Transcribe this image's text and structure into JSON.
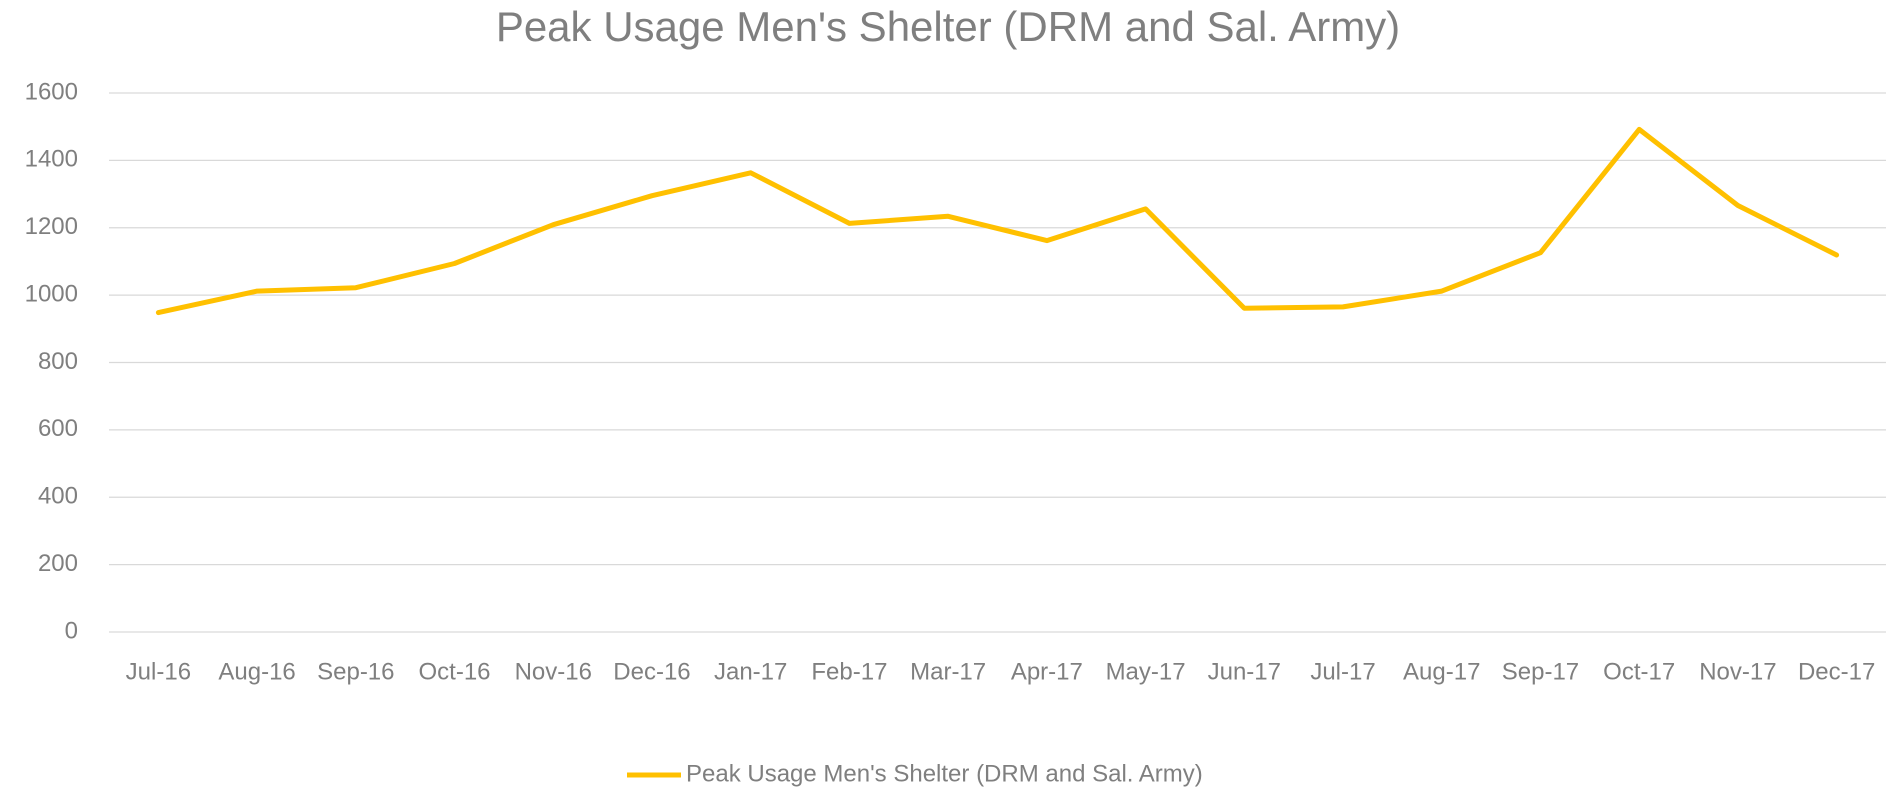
{
  "chart_data": {
    "type": "line",
    "title": "Peak Usage Men's Shelter (DRM and Sal. Army)",
    "categories": [
      "Jul-16",
      "Aug-16",
      "Sep-16",
      "Oct-16",
      "Nov-16",
      "Dec-16",
      "Jan-17",
      "Feb-17",
      "Mar-17",
      "Apr-17",
      "May-17",
      "Jun-17",
      "Jul-17",
      "Aug-17",
      "Sep-17",
      "Oct-17",
      "Nov-17",
      "Dec-17"
    ],
    "series": [
      {
        "name": "Peak Usage Men's Shelter (DRM and Sal. Army)",
        "color": "#ffc000",
        "values": [
          948,
          1012,
          1022,
          1094,
          1209,
          1295,
          1363,
          1213,
          1234,
          1162,
          1256,
          961,
          965,
          1012,
          1126,
          1492,
          1266,
          1119
        ]
      }
    ],
    "ylim": [
      0,
      1600
    ],
    "yticks": [
      0,
      200,
      400,
      600,
      800,
      1000,
      1200,
      1400,
      1600
    ],
    "grid": true,
    "legend": "bottom"
  }
}
